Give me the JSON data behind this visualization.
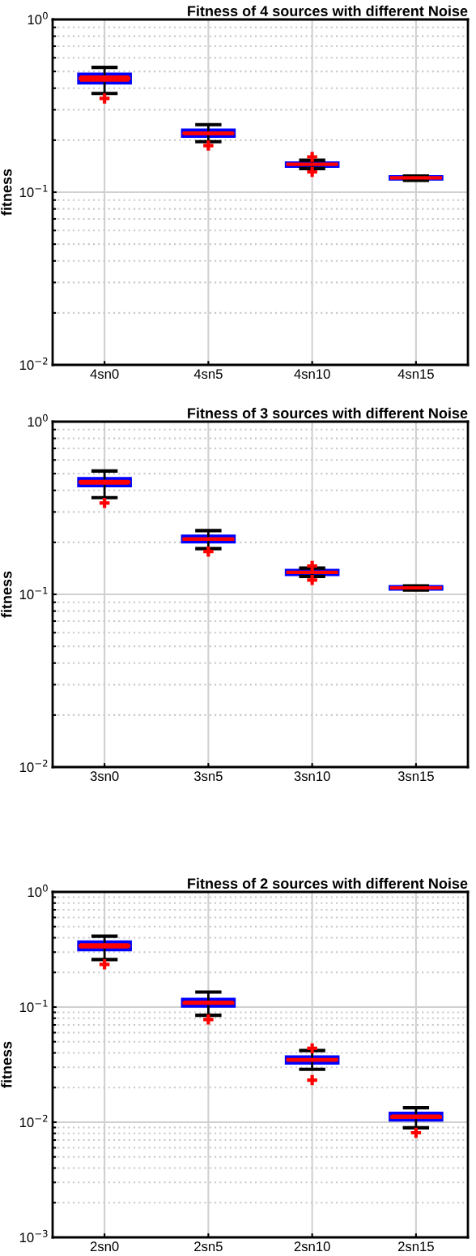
{
  "chart_data": [
    {
      "type": "box",
      "title": "Fitness of 4 sources with different Noise",
      "ylabel": "fitness",
      "categories": [
        "4sn0",
        "4sn5",
        "4sn10",
        "4sn15"
      ],
      "log": "y",
      "grid": true,
      "ylim": [
        0.01,
        1
      ],
      "yticks": [
        {
          "value": 0.01,
          "label": "10$^{−2}$"
        },
        {
          "value": 0.1,
          "label": "10$^{−1}$"
        },
        {
          "value": 1,
          "label": "10$^{0}$"
        }
      ],
      "series": [
        {
          "color": "#0000ff",
          "boxes": [
            {
              "low": 0.373,
              "q1": 0.428,
              "median": 0.456,
              "q3": 0.483,
              "high": 0.528,
              "outliers": [
                0.349
              ]
            },
            {
              "low": 0.196,
              "q1": 0.21,
              "median": 0.219,
              "q3": 0.229,
              "high": 0.246,
              "outliers": [
                0.186
              ]
            },
            {
              "low": 0.137,
              "q1": 0.141,
              "median": 0.145,
              "q3": 0.148,
              "high": 0.153,
              "outliers": [
                0.16,
                0.131
              ]
            },
            {
              "low": 0.117,
              "q1": 0.119,
              "median": 0.121,
              "q3": 0.123,
              "high": 0.124
            }
          ]
        }
      ]
    },
    {
      "type": "box",
      "title": "Fitness of 3 sources with different Noise",
      "ylabel": "fitness",
      "categories": [
        "3sn0",
        "3sn5",
        "3sn10",
        "3sn15"
      ],
      "log": "y",
      "grid": true,
      "ylim": [
        0.01,
        1
      ],
      "yticks": [
        {
          "value": 0.01,
          "label": "10$^{−2}$"
        },
        {
          "value": 0.1,
          "label": "10$^{−1}$"
        },
        {
          "value": 1,
          "label": "10$^{0}$"
        }
      ],
      "series": [
        {
          "color": "#0000ff",
          "boxes": [
            {
              "low": 0.363,
              "q1": 0.424,
              "median": 0.447,
              "q3": 0.469,
              "high": 0.518,
              "outliers": [
                0.338
              ]
            },
            {
              "low": 0.184,
              "q1": 0.201,
              "median": 0.209,
              "q3": 0.218,
              "high": 0.234,
              "outliers": [
                0.177
              ]
            },
            {
              "low": 0.127,
              "q1": 0.13,
              "median": 0.134,
              "q3": 0.138,
              "high": 0.142,
              "outliers": [
                0.146,
                0.121
              ]
            },
            {
              "low": 0.106,
              "q1": 0.107,
              "median": 0.109,
              "q3": 0.111,
              "high": 0.112
            }
          ]
        }
      ]
    },
    {
      "type": "box",
      "title": "Fitness of 2 sources with different Noise",
      "ylabel": "fitness",
      "categories": [
        "2sn0",
        "2sn5",
        "2sn10",
        "2sn15"
      ],
      "log": "y",
      "grid": true,
      "ylim": [
        0.001,
        1
      ],
      "yticks": [
        {
          "value": 0.001,
          "label": "10$^{−3}$"
        },
        {
          "value": 0.01,
          "label": "10$^{−2}$"
        },
        {
          "value": 0.1,
          "label": "10$^{−1}$"
        },
        {
          "value": 1,
          "label": "10$^{0}$"
        }
      ],
      "series": [
        {
          "color": "#0000ff",
          "boxes": [
            {
              "low": 0.259,
              "q1": 0.314,
              "median": 0.34,
              "q3": 0.369,
              "high": 0.412,
              "outliers": [
                0.235
              ]
            },
            {
              "low": 0.0848,
              "q1": 0.1017,
              "median": 0.1086,
              "q3": 0.117,
              "high": 0.135,
              "outliers": [
                0.078
              ]
            },
            {
              "low": 0.0288,
              "q1": 0.0325,
              "median": 0.0349,
              "q3": 0.0371,
              "high": 0.0419,
              "outliers": [
                0.0438,
                0.0232
              ]
            },
            {
              "low": 0.00895,
              "q1": 0.0104,
              "median": 0.0111,
              "q3": 0.012,
              "high": 0.01338,
              "outliers": [
                0.0081
              ]
            }
          ]
        }
      ]
    }
  ]
}
